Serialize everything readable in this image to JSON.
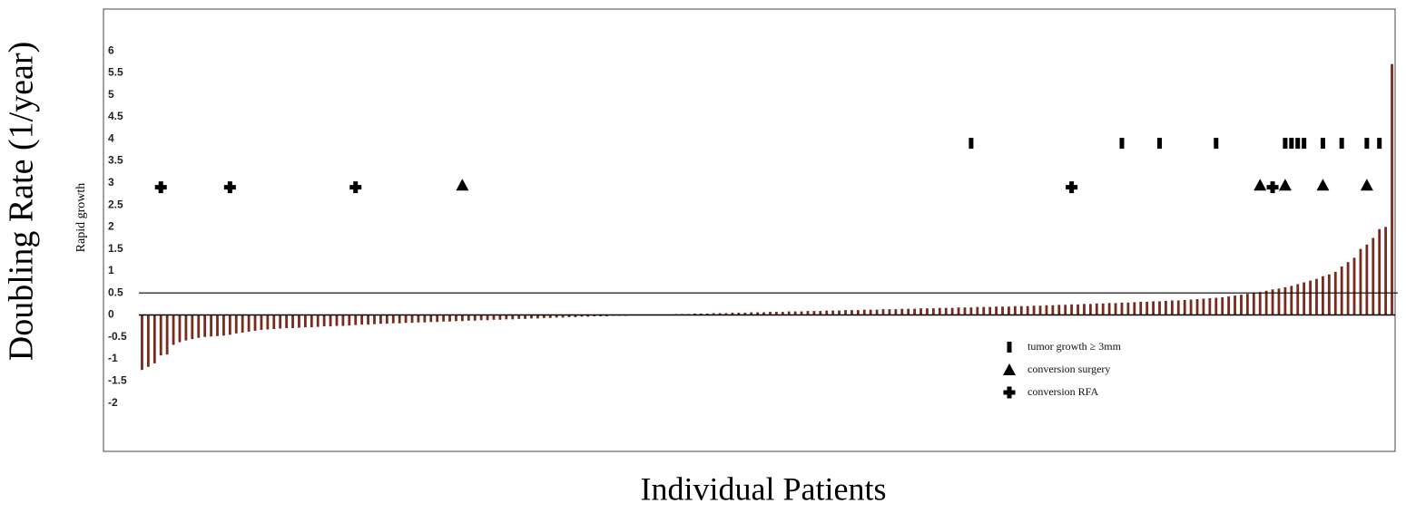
{
  "chart_data": {
    "type": "waterfall",
    "y_label": "Doubling Rate (1/year)",
    "x_label": "Individual Patients",
    "threshold_label": "Rapid growth",
    "threshold": 0.5,
    "color": "#7a2a1c",
    "ylim": [
      -3.1,
      6.95
    ],
    "yticks": [
      6,
      5.5,
      5,
      4.5,
      4,
      3.5,
      3,
      2.5,
      2,
      1.5,
      1,
      0.5,
      0,
      -0.5,
      -1,
      -1.5,
      -2
    ],
    "values": [
      -1.25,
      -1.18,
      -1.1,
      -0.92,
      -0.9,
      -0.68,
      -0.62,
      -0.58,
      -0.55,
      -0.52,
      -0.5,
      -0.49,
      -0.48,
      -0.47,
      -0.45,
      -0.42,
      -0.4,
      -0.38,
      -0.36,
      -0.34,
      -0.33,
      -0.32,
      -0.31,
      -0.3,
      -0.3,
      -0.29,
      -0.28,
      -0.28,
      -0.27,
      -0.26,
      -0.26,
      -0.25,
      -0.25,
      -0.24,
      -0.23,
      -0.22,
      -0.22,
      -0.21,
      -0.2,
      -0.2,
      -0.19,
      -0.19,
      -0.18,
      -0.18,
      -0.17,
      -0.17,
      -0.16,
      -0.16,
      -0.15,
      -0.15,
      -0.14,
      -0.14,
      -0.13,
      -0.13,
      -0.12,
      -0.12,
      -0.11,
      -0.11,
      -0.1,
      -0.1,
      -0.09,
      -0.09,
      -0.08,
      -0.08,
      -0.07,
      -0.07,
      -0.06,
      -0.06,
      -0.05,
      -0.05,
      -0.04,
      -0.04,
      -0.03,
      -0.03,
      -0.03,
      -0.02,
      -0.02,
      -0.02,
      -0.01,
      -0.01,
      -0.01,
      -0.01,
      0.01,
      0.01,
      0.01,
      0.02,
      0.02,
      0.02,
      0.03,
      0.03,
      0.03,
      0.04,
      0.04,
      0.04,
      0.05,
      0.05,
      0.05,
      0.06,
      0.06,
      0.06,
      0.07,
      0.07,
      0.07,
      0.08,
      0.08,
      0.08,
      0.09,
      0.09,
      0.09,
      0.1,
      0.1,
      0.1,
      0.11,
      0.11,
      0.11,
      0.12,
      0.12,
      0.12,
      0.13,
      0.13,
      0.13,
      0.14,
      0.14,
      0.14,
      0.15,
      0.15,
      0.15,
      0.16,
      0.16,
      0.16,
      0.17,
      0.17,
      0.17,
      0.18,
      0.18,
      0.18,
      0.19,
      0.19,
      0.19,
      0.2,
      0.2,
      0.2,
      0.21,
      0.21,
      0.22,
      0.22,
      0.23,
      0.23,
      0.24,
      0.24,
      0.25,
      0.25,
      0.26,
      0.26,
      0.27,
      0.27,
      0.28,
      0.28,
      0.29,
      0.3,
      0.3,
      0.31,
      0.31,
      0.32,
      0.33,
      0.33,
      0.34,
      0.35,
      0.36,
      0.37,
      0.38,
      0.39,
      0.4,
      0.42,
      0.44,
      0.46,
      0.48,
      0.5,
      0.52,
      0.55,
      0.58,
      0.6,
      0.63,
      0.66,
      0.7,
      0.74,
      0.78,
      0.82,
      0.88,
      0.92,
      0.98,
      1.1,
      1.2,
      1.3,
      1.5,
      1.6,
      1.75,
      1.95,
      2.0,
      5.7
    ],
    "markers": [
      {
        "name": "tumor growth ≥ 3mm",
        "marker": "bar",
        "color": "#000000",
        "x": [
          132,
          156,
          162,
          171,
          182,
          183,
          184,
          185,
          188,
          191,
          195,
          197
        ],
        "values": [
          3.9,
          3.9,
          3.9,
          3.9,
          3.9,
          3.9,
          3.9,
          3.9,
          3.9,
          3.9,
          3.9,
          3.9
        ]
      },
      {
        "name": "conversion surgery",
        "marker": "triangle",
        "color": "#000000",
        "x": [
          51,
          178,
          182,
          188,
          195
        ],
        "values": [
          2.95,
          2.95,
          2.95,
          2.95,
          2.95
        ]
      },
      {
        "name": "conversion RFA",
        "marker": "plus",
        "color": "#000000",
        "x": [
          3,
          14,
          34,
          148,
          180
        ],
        "values": [
          2.9,
          2.9,
          2.9,
          2.9,
          2.9
        ]
      }
    ]
  }
}
